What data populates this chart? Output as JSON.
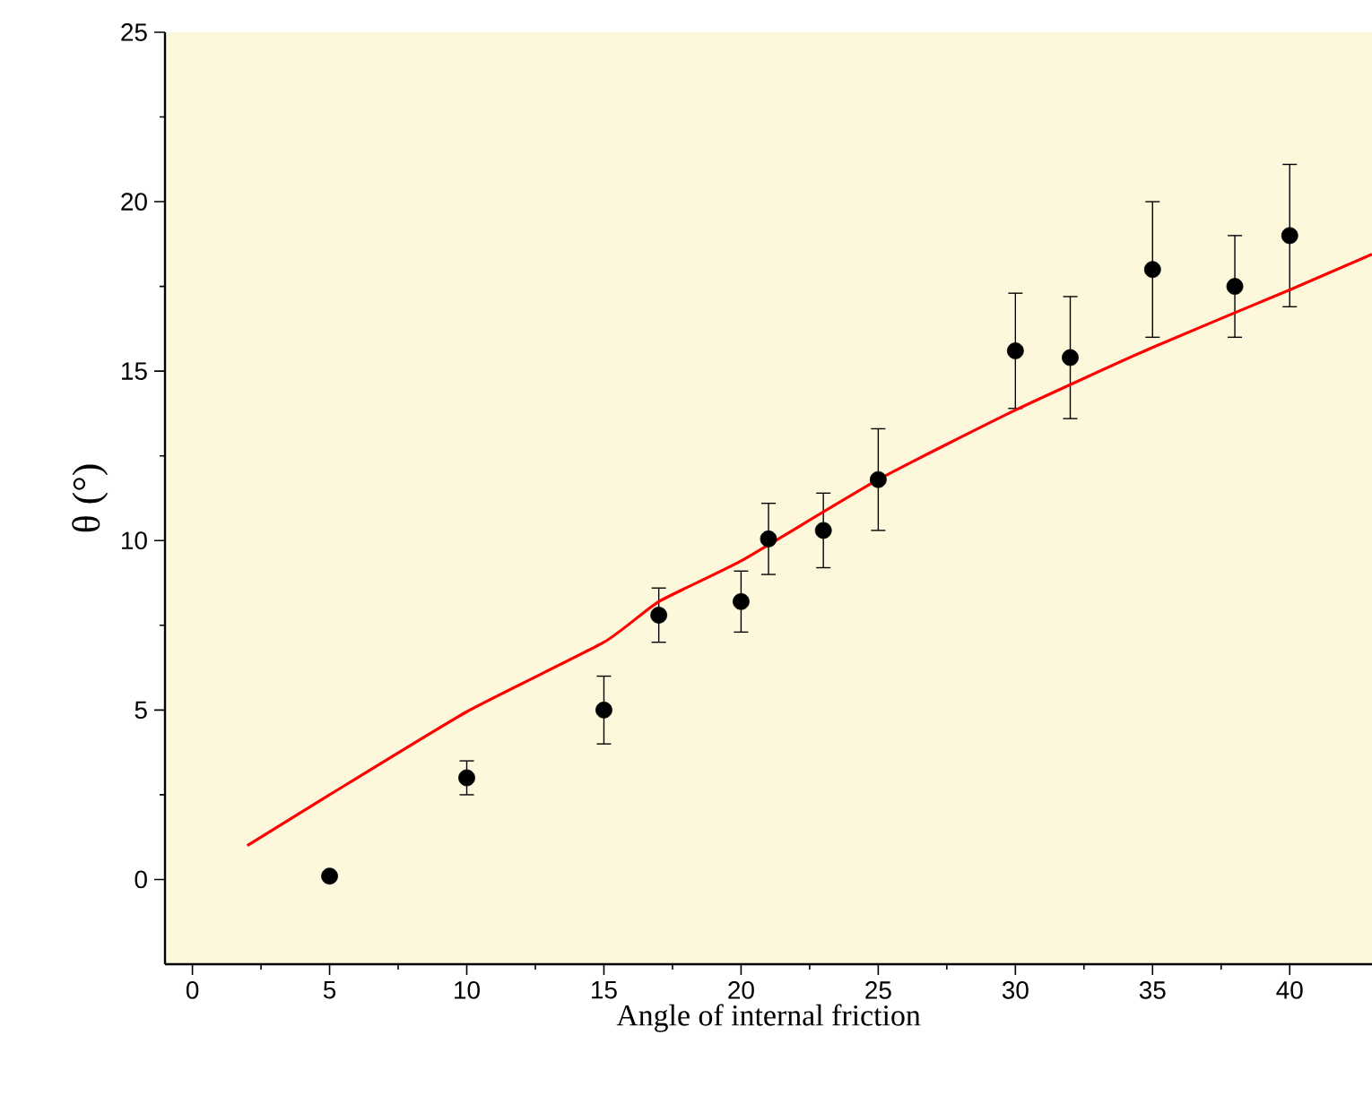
{
  "chart_data": {
    "type": "scatter",
    "xlabel": "Angle of internal friction",
    "ylabel": "θ (°)",
    "xlim": [
      -1,
      43
    ],
    "ylim": [
      -2.5,
      25
    ],
    "xticks": [
      0,
      5,
      10,
      15,
      20,
      25,
      30,
      35,
      40
    ],
    "yticks": [
      0,
      5,
      10,
      15,
      20,
      25
    ],
    "grid": false,
    "marker": "circle",
    "series": [
      {
        "color": "#000000",
        "x": [
          5,
          10,
          15,
          17,
          20,
          21,
          23,
          25,
          30,
          32,
          35,
          38,
          40
        ],
        "values": [
          0.1,
          3.0,
          5.0,
          7.8,
          8.2,
          10.05,
          10.3,
          11.8,
          15.6,
          15.4,
          18.0,
          17.5,
          19.0
        ],
        "errors": [
          null,
          [
            2.5,
            3.5
          ],
          [
            4.0,
            6.0
          ],
          [
            7.0,
            8.6
          ],
          [
            7.3,
            9.1
          ],
          [
            9.0,
            11.1
          ],
          [
            9.2,
            11.4
          ],
          [
            10.3,
            13.3
          ],
          [
            13.9,
            17.3
          ],
          [
            13.6,
            17.2
          ],
          [
            16.0,
            20.0
          ],
          [
            16.0,
            19.0
          ],
          [
            16.9,
            21.1
          ]
        ]
      },
      {
        "type": "line",
        "color": "#ff0000",
        "marker": "none",
        "x": [
          2,
          5,
          10,
          15,
          17,
          20,
          25,
          30,
          35,
          40,
          43
        ],
        "values": [
          1.0,
          2.5,
          4.95,
          7.0,
          8.2,
          9.4,
          11.8,
          13.85,
          15.7,
          17.4,
          18.45
        ]
      }
    ]
  }
}
